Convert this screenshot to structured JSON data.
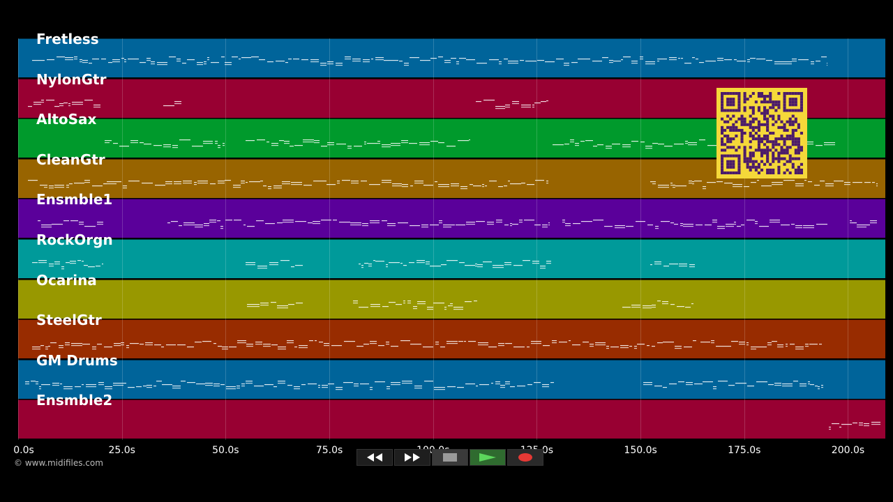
{
  "window_size": "1280x720",
  "tracks": [
    {
      "name": "Fretless",
      "color": "#00649a"
    },
    {
      "name": "NylonGtr",
      "color": "#980032"
    },
    {
      "name": "AltoSax",
      "color": "#009a2c"
    },
    {
      "name": "CleanGtr",
      "color": "#986400"
    },
    {
      "name": "Ensmble1",
      "color": "#5a009a"
    },
    {
      "name": "RockOrgn",
      "color": "#009a9a"
    },
    {
      "name": "Ocarina",
      "color": "#989800"
    },
    {
      "name": "SteelGtr",
      "color": "#982c00"
    },
    {
      "name": "GM Drums",
      "color": "#00649a"
    },
    {
      "name": "Ensmble2",
      "color": "#980032"
    }
  ],
  "time_axis": {
    "unit": "s",
    "ticks": [
      "0.0s",
      "25.0s",
      "50.0s",
      "75.0s",
      "100.0s",
      "125.0s",
      "150.0s",
      "175.0s",
      "200.0s"
    ],
    "range_seconds": [
      0,
      209
    ]
  },
  "copyright": "© www.midifiles.com",
  "transport": {
    "rewind_icon": "rewind-icon",
    "fast_forward_icon": "fast-forward-icon",
    "stop_icon": "stop-icon",
    "play_icon": "play-icon",
    "record_icon": "record-icon",
    "play_color": "#4caf50",
    "record_color": "#e53935"
  },
  "qr_code": {
    "background": "#f5d83a",
    "foreground": "#4a1a6b"
  }
}
